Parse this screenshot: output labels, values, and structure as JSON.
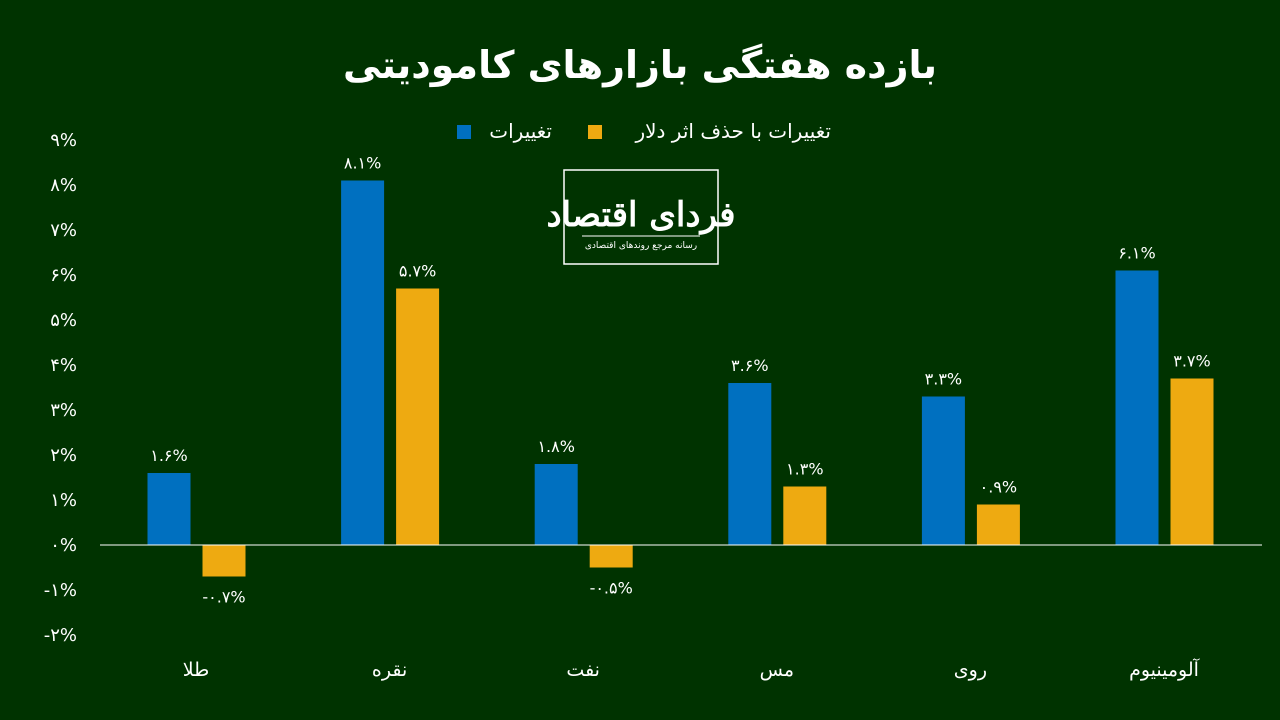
{
  "chart_data": {
    "type": "bar",
    "title": "بازده هفتگی بازارهای کامودیتی",
    "categories": [
      "طلا",
      "نقره",
      "نفت",
      "مس",
      "روی",
      "آلومینیوم"
    ],
    "series": [
      {
        "name": "تغییرات",
        "color": "#0070c0",
        "values": [
          1.6,
          8.1,
          1.8,
          3.6,
          3.3,
          6.1
        ],
        "labels": [
          "۱.۶%",
          "۸.۱%",
          "۱.۸%",
          "۳.۶%",
          "۳.۳%",
          "۶.۱%"
        ]
      },
      {
        "name": "تغییرات با حذف اثر دلار",
        "color": "#eeaa11",
        "values": [
          -0.7,
          5.7,
          -0.5,
          1.3,
          0.9,
          3.7
        ],
        "labels": [
          "-۰.۷%",
          "۵.۷%",
          "-۰.۵%",
          "۱.۳%",
          "۰.۹%",
          "۳.۷%"
        ]
      }
    ],
    "ylim": [
      -2,
      9
    ],
    "yticks": [
      9,
      8,
      7,
      6,
      5,
      4,
      3,
      2,
      1,
      0,
      -1,
      -2
    ],
    "ytick_labels": [
      "۹%",
      "۸%",
      "۷%",
      "۶%",
      "۵%",
      "۴%",
      "۳%",
      "۲%",
      "۱%",
      "۰%",
      "-۱%",
      "-۲%"
    ],
    "legend_position": "top-center",
    "grid": false
  },
  "logo": {
    "name": "فردای اقتصاد",
    "tagline": "رسانه مرجع روندهای اقتصادی"
  }
}
